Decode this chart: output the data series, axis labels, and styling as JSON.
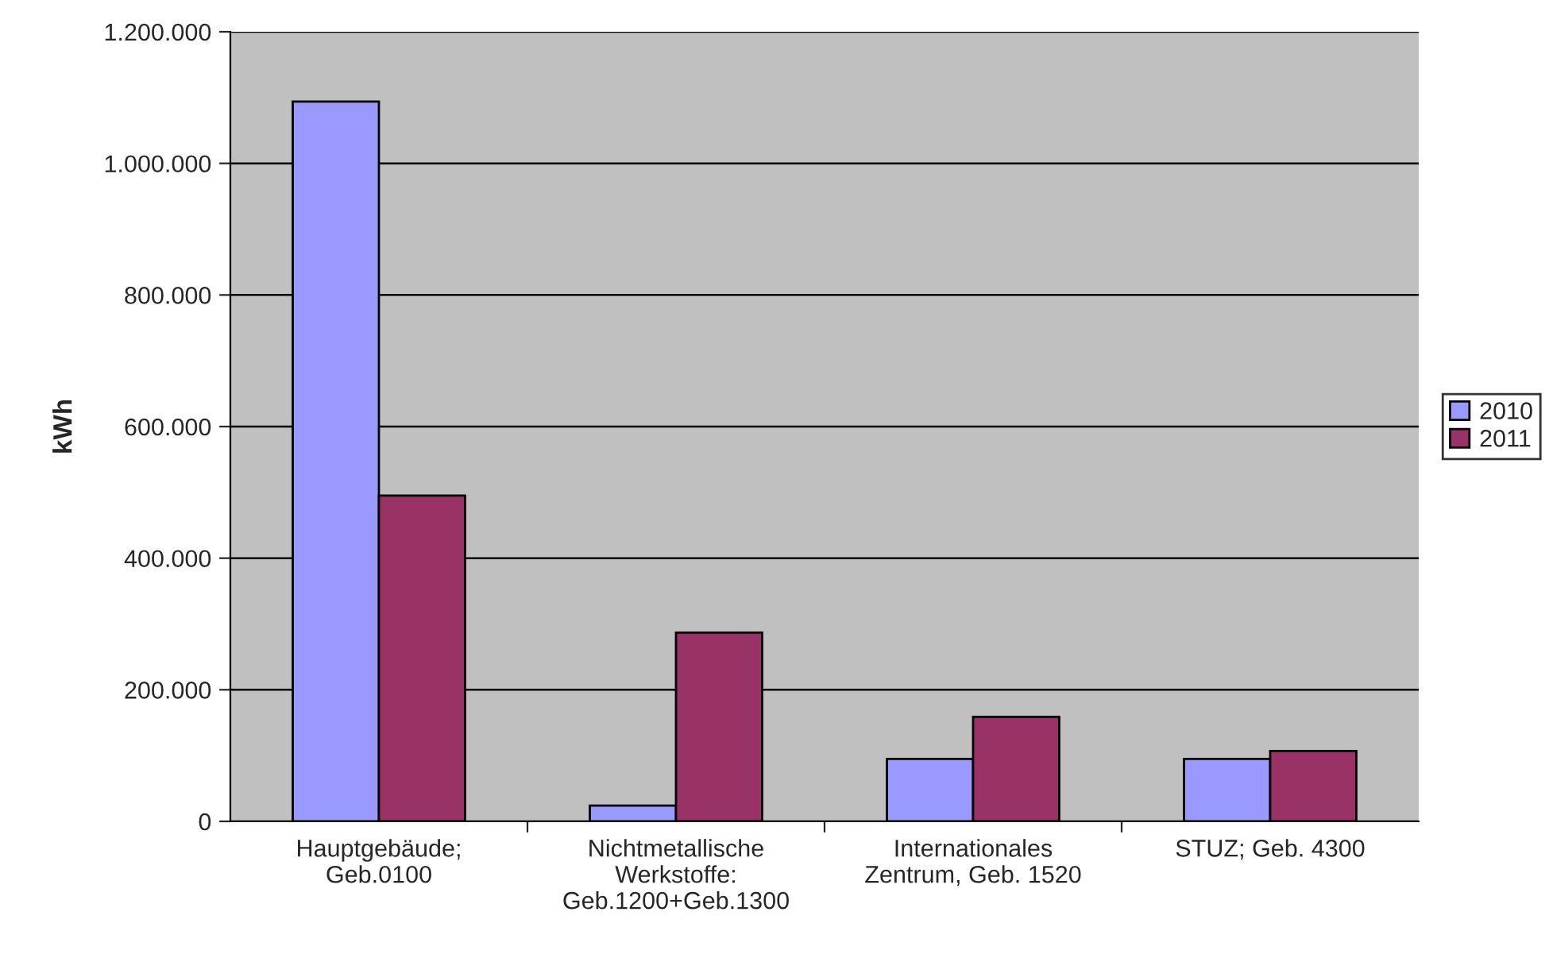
{
  "chart_data": {
    "type": "bar",
    "ylabel": "kWh",
    "categories": [
      "Hauptgebäude;\nGeb.0100",
      "Nichtmetallische\nWerkstoffe:\nGeb.1200+Geb.1300",
      "Internationales\nZentrum, Geb. 1520",
      "STUZ; Geb. 4300"
    ],
    "series": [
      {
        "name": "2010",
        "color": "#9999ff",
        "values": [
          1094000,
          24000,
          95000,
          95000
        ]
      },
      {
        "name": "2011",
        "color": "#993366",
        "values": [
          495000,
          287000,
          159000,
          107000
        ]
      }
    ],
    "ylim": [
      0,
      1200000
    ],
    "yticks": [
      {
        "value": 0,
        "label": "0"
      },
      {
        "value": 200000,
        "label": "200.000"
      },
      {
        "value": 400000,
        "label": "400.000"
      },
      {
        "value": 600000,
        "label": "600.000"
      },
      {
        "value": 800000,
        "label": "800.000"
      },
      {
        "value": 1000000,
        "label": "1.000.000"
      },
      {
        "value": 1200000,
        "label": "1.200.000"
      }
    ],
    "grid": "y",
    "legend": "right"
  }
}
